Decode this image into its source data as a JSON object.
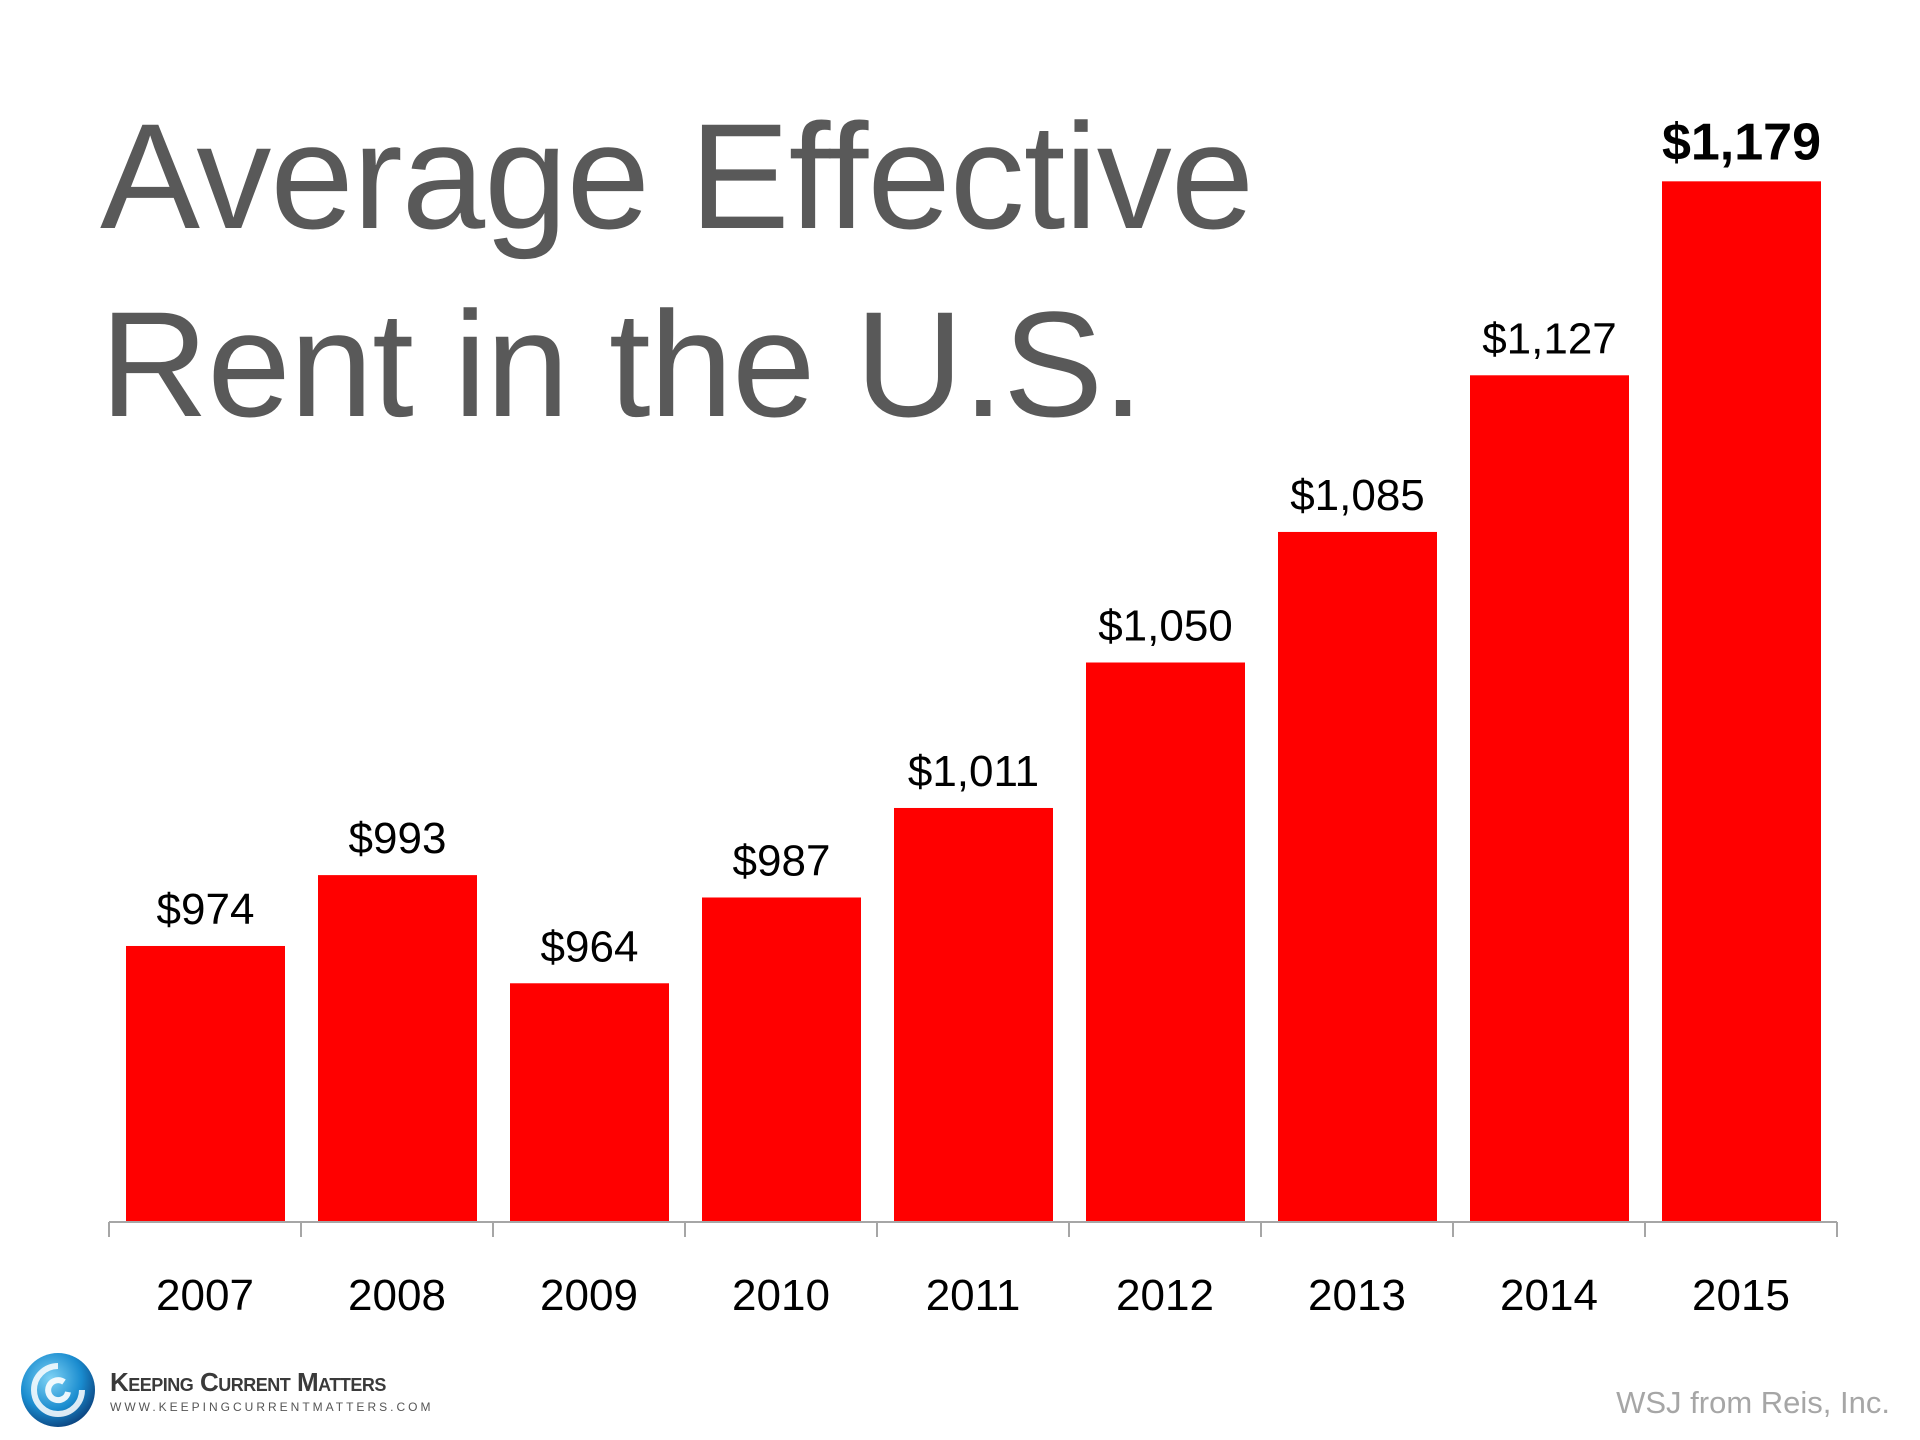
{
  "chart_data": {
    "type": "bar",
    "title": "Average Effective Rent in the U.S.",
    "title_lines": [
      "Average Effective",
      "Rent in the U.S."
    ],
    "categories": [
      "2007",
      "2008",
      "2009",
      "2010",
      "2011",
      "2012",
      "2013",
      "2014",
      "2015"
    ],
    "values": [
      974,
      993,
      964,
      987,
      1011,
      1050,
      1085,
      1127,
      1179
    ],
    "data_labels": [
      "$974",
      "$993",
      "$964",
      "$987",
      "$1,011",
      "$1,050",
      "$1,085",
      "$1,127",
      "$1,179"
    ],
    "highlight_last_label_bold": true,
    "xlabel": "",
    "ylabel": "",
    "ylim": [
      900,
      1200
    ],
    "y_axis_visible": false,
    "grid": false,
    "bar_color": "#ff0000",
    "axis_color": "#a6a6a6"
  },
  "source": "WSJ from Reis, Inc.",
  "logo": {
    "name": "Keeping Current Matters",
    "url": "WWW.KEEPINGCURRENTMATTERS.COM"
  }
}
